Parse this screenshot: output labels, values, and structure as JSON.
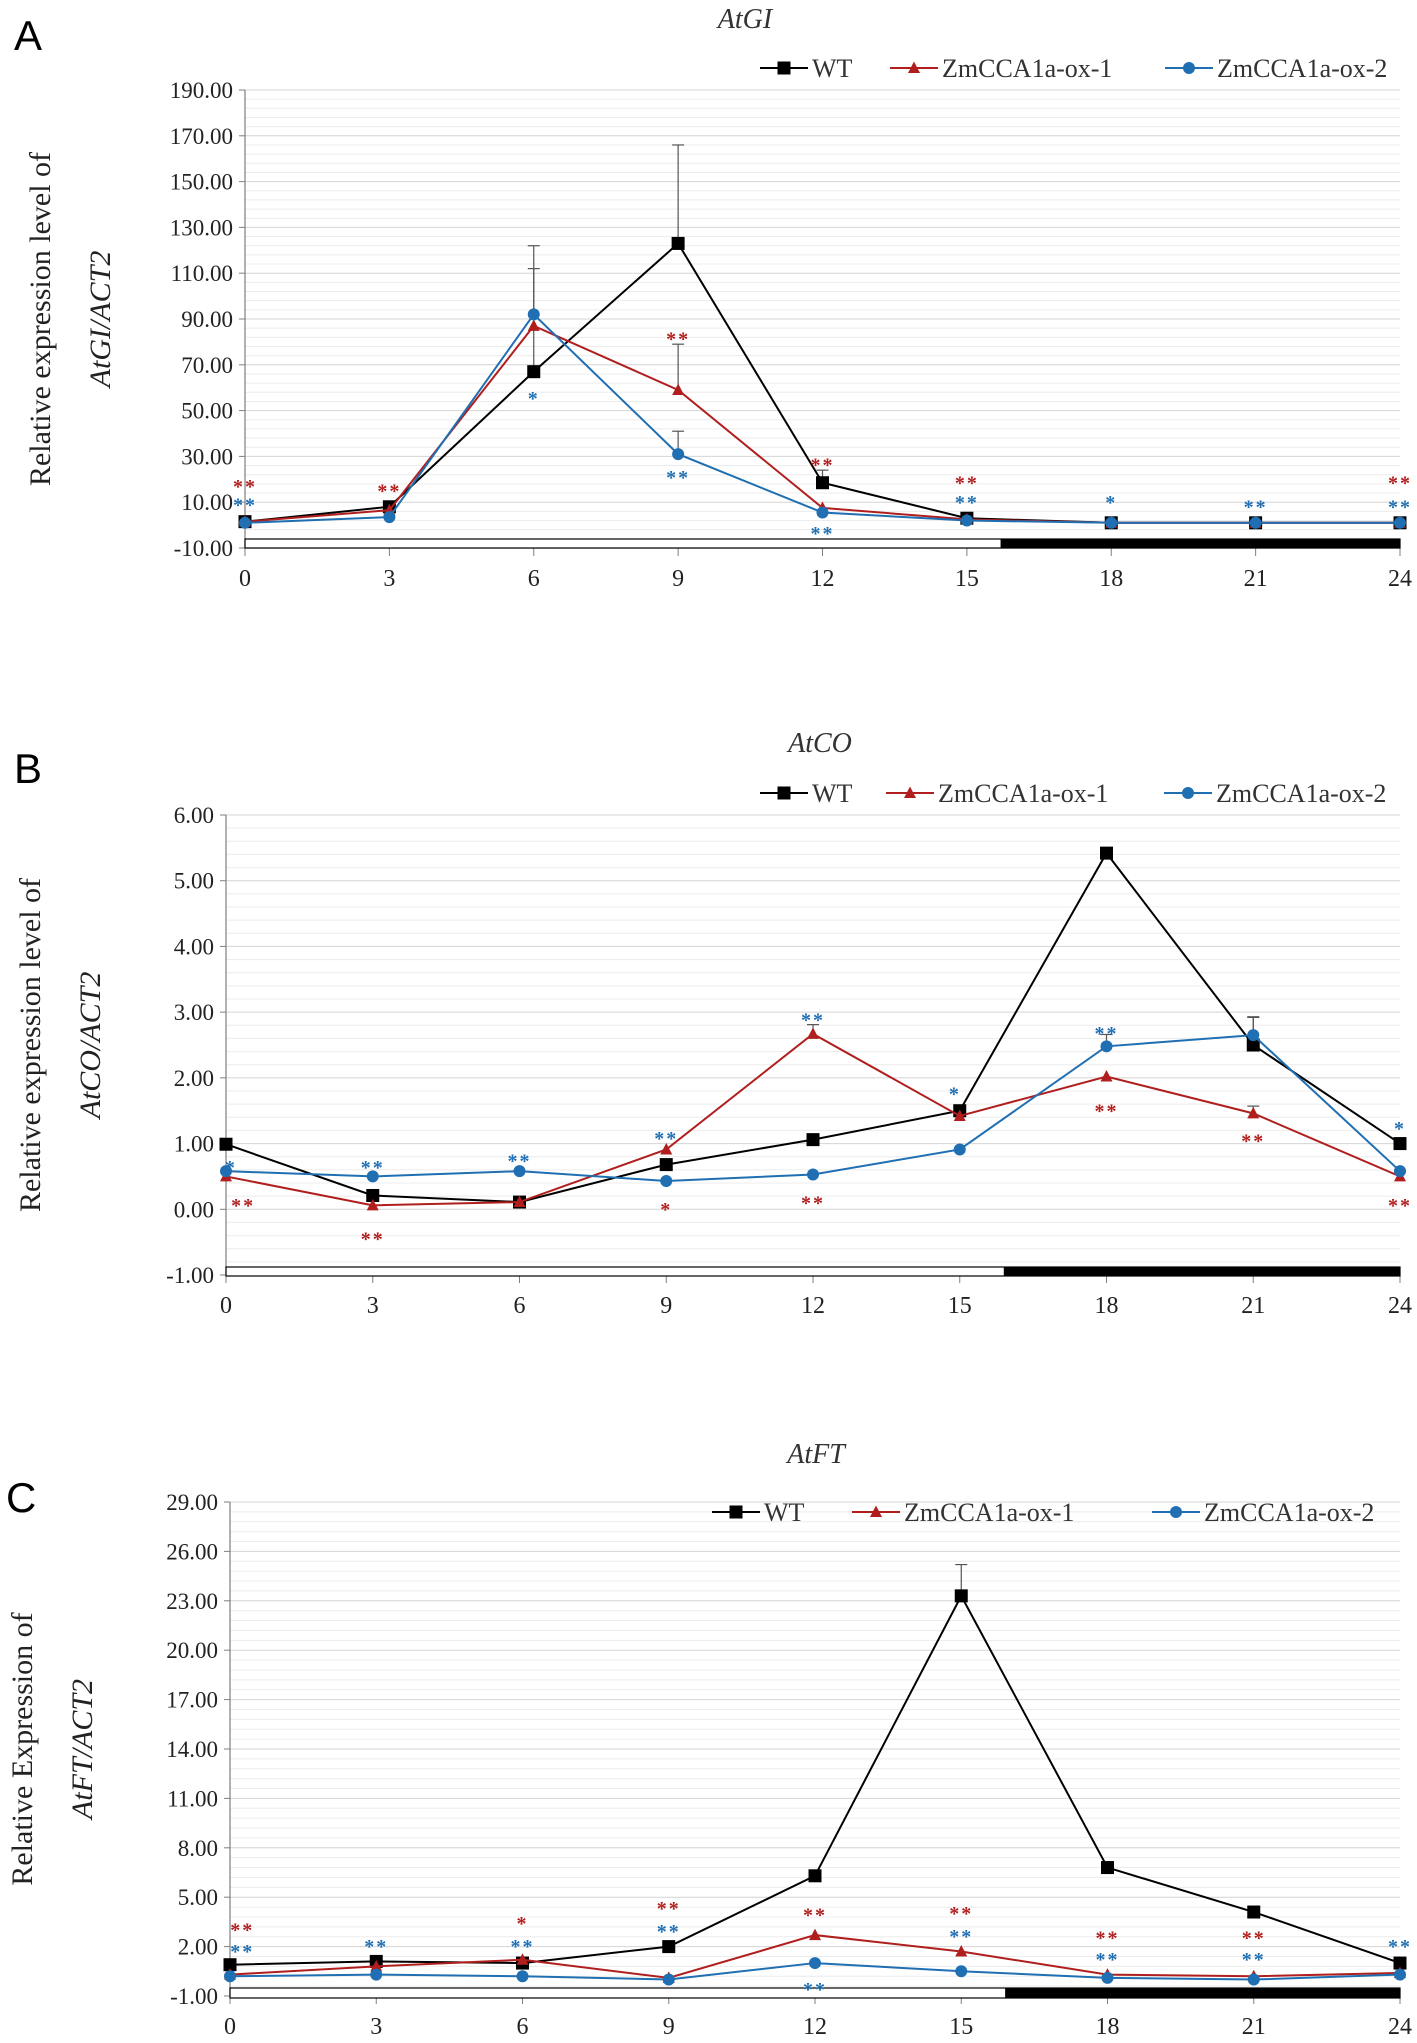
{
  "colors": {
    "WT": "#000000",
    "ZmCCA1a-ox-1": "#b01e1e",
    "ZmCCA1a-ox-2": "#1f6fb2",
    "grid": "#d4d4d4",
    "axis": "#7f7f7f"
  },
  "chart_data": [
    {
      "panel_label": "A",
      "type": "line",
      "title": "AtGI",
      "ylabel_line1": "Relative expression level of",
      "ylabel_line2": "AtGI/ACT2",
      "x": [
        0,
        3,
        6,
        9,
        12,
        15,
        18,
        21,
        24
      ],
      "ylim": [
        -10,
        190
      ],
      "yticks": [
        -10,
        10,
        30,
        50,
        70,
        90,
        110,
        130,
        150,
        170,
        190
      ],
      "ytick_labels": [
        "-10.00",
        "10.00",
        "30.00",
        "50.00",
        "70.00",
        "90.00",
        "110.00",
        "130.00",
        "150.00",
        "170.00",
        "190.00"
      ],
      "night_start": 15.7,
      "series": [
        {
          "name": "WT",
          "values": [
            1.5,
            8,
            67,
            123,
            18.5,
            3,
            1,
            1,
            1
          ],
          "errors": [
            0,
            0,
            45,
            43,
            5.5,
            0,
            0,
            0,
            0
          ]
        },
        {
          "name": "ZmCCA1a-ox-1",
          "values": [
            1.5,
            6.5,
            87,
            59,
            7.5,
            2.5,
            1,
            1,
            1
          ],
          "errors": [
            0,
            0,
            0,
            20,
            0,
            0,
            0,
            0,
            0
          ]
        },
        {
          "name": "ZmCCA1a-ox-2",
          "values": [
            1,
            3.5,
            92,
            31,
            5.5,
            2,
            1,
            1,
            1
          ],
          "errors": [
            0,
            0,
            30,
            10,
            0,
            0,
            0,
            0,
            0
          ]
        }
      ],
      "significance": [
        {
          "series": "ZmCCA1a-ox-1",
          "x": 0,
          "y": 17.5,
          "text": "**"
        },
        {
          "series": "ZmCCA1a-ox-2",
          "x": 0,
          "y": 9.5,
          "text": "**"
        },
        {
          "series": "ZmCCA1a-ox-1",
          "x": 3,
          "y": 15.5,
          "text": "**"
        },
        {
          "series": "ZmCCA1a-ox-2",
          "x": 6,
          "y": 56,
          "text": "*"
        },
        {
          "series": "ZmCCA1a-ox-1",
          "x": 9,
          "y": 82,
          "text": "**"
        },
        {
          "series": "ZmCCA1a-ox-2",
          "x": 9,
          "y": 21.5,
          "text": "**"
        },
        {
          "series": "ZmCCA1a-ox-1",
          "x": 12,
          "y": 27,
          "text": "**"
        },
        {
          "series": "ZmCCA1a-ox-2",
          "x": 12,
          "y": -3,
          "text": "**"
        },
        {
          "series": "ZmCCA1a-ox-1",
          "x": 15,
          "y": 19,
          "text": "**"
        },
        {
          "series": "ZmCCA1a-ox-2",
          "x": 15,
          "y": 10.5,
          "text": "**"
        },
        {
          "series": "ZmCCA1a-ox-2",
          "x": 18,
          "y": 10.5,
          "text": "*"
        },
        {
          "series": "ZmCCA1a-ox-2",
          "x": 21,
          "y": 8.5,
          "text": "**"
        },
        {
          "series": "ZmCCA1a-ox-1",
          "x": 24,
          "y": 19,
          "text": "**"
        },
        {
          "series": "ZmCCA1a-ox-2",
          "x": 24,
          "y": 8.5,
          "text": "**"
        }
      ],
      "legend": [
        "WT",
        "ZmCCA1a-ox-1",
        "ZmCCA1a-ox-2"
      ]
    },
    {
      "panel_label": "B",
      "type": "line",
      "title": "AtCO",
      "ylabel_line1": "Relative expression level of",
      "ylabel_line2": "AtCO/ACT2",
      "x": [
        0,
        3,
        6,
        9,
        12,
        15,
        18,
        21,
        24
      ],
      "ylim": [
        -1,
        6
      ],
      "yticks": [
        -1,
        0,
        1,
        2,
        3,
        4,
        5,
        6
      ],
      "ytick_labels": [
        "-1.00",
        "0.00",
        "1.00",
        "2.00",
        "3.00",
        "4.00",
        "5.00",
        "6.00"
      ],
      "night_start": 15.9,
      "series": [
        {
          "name": "WT",
          "values": [
            0.99,
            0.21,
            0.11,
            0.68,
            1.06,
            1.5,
            5.42,
            2.5,
            1.0
          ],
          "errors": [
            0,
            0,
            0,
            0,
            0,
            0,
            0,
            0.42,
            0
          ]
        },
        {
          "name": "ZmCCA1a-ox-1",
          "values": [
            0.5,
            0.06,
            0.11,
            0.91,
            2.67,
            1.42,
            2.02,
            1.46,
            0.5
          ],
          "errors": [
            0,
            0,
            0,
            0,
            0.14,
            0,
            0,
            0.11,
            0
          ]
        },
        {
          "name": "ZmCCA1a-ox-2",
          "values": [
            0.58,
            0.5,
            0.58,
            0.43,
            0.53,
            0.91,
            2.48,
            2.65,
            0.58
          ],
          "errors": [
            0,
            0,
            0,
            0,
            0,
            0,
            0.18,
            0.28,
            0
          ]
        }
      ],
      "significance": [
        {
          "series": "ZmCCA1a-ox-2",
          "x": 0.1,
          "y": 0.66,
          "text": "*"
        },
        {
          "series": "ZmCCA1a-ox-1",
          "x": 0.35,
          "y": 0.08,
          "text": "**"
        },
        {
          "series": "ZmCCA1a-ox-2",
          "x": 3,
          "y": 0.66,
          "text": "**"
        },
        {
          "series": "ZmCCA1a-ox-1",
          "x": 3,
          "y": -0.43,
          "text": "**"
        },
        {
          "series": "ZmCCA1a-ox-2",
          "x": 6,
          "y": 0.76,
          "text": "**"
        },
        {
          "series": "ZmCCA1a-ox-2",
          "x": 9,
          "y": 1.1,
          "text": "**"
        },
        {
          "series": "ZmCCA1a-ox-1",
          "x": 9,
          "y": 0.02,
          "text": "*"
        },
        {
          "series": "ZmCCA1a-ox-2",
          "x": 12,
          "y": 2.9,
          "text": "**"
        },
        {
          "series": "ZmCCA1a-ox-1",
          "x": 12,
          "y": 0.12,
          "text": "**"
        },
        {
          "series": "ZmCCA1a-ox-2",
          "x": 14.9,
          "y": 1.78,
          "text": "*"
        },
        {
          "series": "ZmCCA1a-ox-2",
          "x": 18,
          "y": 2.7,
          "text": "**"
        },
        {
          "series": "ZmCCA1a-ox-1",
          "x": 18,
          "y": 1.52,
          "text": "**"
        },
        {
          "series": "ZmCCA1a-ox-1",
          "x": 21,
          "y": 1.06,
          "text": "**"
        },
        {
          "series": "ZmCCA1a-ox-2",
          "x": 24,
          "y": 1.25,
          "text": "*"
        },
        {
          "series": "ZmCCA1a-ox-1",
          "x": 24,
          "y": 0.08,
          "text": "**"
        }
      ],
      "legend": [
        "WT",
        "ZmCCA1a-ox-1",
        "ZmCCA1a-ox-2"
      ]
    },
    {
      "panel_label": "C",
      "type": "line",
      "title": "AtFT",
      "ylabel_line1": "Relative Expression of",
      "ylabel_line2": "AtFT/ACT2",
      "x": [
        0,
        3,
        6,
        9,
        12,
        15,
        18,
        21,
        24
      ],
      "ylim": [
        -1,
        29
      ],
      "yticks": [
        -1,
        2,
        5,
        8,
        11,
        14,
        17,
        20,
        23,
        26,
        29
      ],
      "ytick_labels": [
        "-1.00",
        "2.00",
        "5.00",
        "8.00",
        "11.00",
        "14.00",
        "17.00",
        "20.00",
        "23.00",
        "26.00",
        "29.00"
      ],
      "night_start": 15.9,
      "series": [
        {
          "name": "WT",
          "values": [
            0.9,
            1.1,
            1.0,
            2.0,
            6.3,
            23.3,
            6.8,
            4.1,
            1.0
          ],
          "errors": [
            0,
            0,
            0,
            0,
            0,
            1.9,
            0,
            0,
            0
          ]
        },
        {
          "name": "ZmCCA1a-ox-1",
          "values": [
            0.3,
            0.8,
            1.2,
            0.1,
            2.7,
            1.7,
            0.3,
            0.2,
            0.4
          ],
          "errors": [
            0,
            0,
            0,
            0,
            0,
            0,
            0,
            0,
            0
          ]
        },
        {
          "name": "ZmCCA1a-ox-2",
          "values": [
            0.2,
            0.3,
            0.2,
            0.0,
            1.0,
            0.5,
            0.1,
            0.0,
            0.3
          ],
          "errors": [
            0,
            0,
            0,
            0,
            0,
            0,
            0,
            0,
            0
          ]
        }
      ],
      "significance": [
        {
          "series": "ZmCCA1a-ox-1",
          "x": 0.25,
          "y": 3.1,
          "text": "**"
        },
        {
          "series": "ZmCCA1a-ox-2",
          "x": 0.25,
          "y": 1.8,
          "text": "**"
        },
        {
          "series": "ZmCCA1a-ox-2",
          "x": 3,
          "y": 2.1,
          "text": "**"
        },
        {
          "series": "ZmCCA1a-ox-1",
          "x": 6,
          "y": 3.5,
          "text": "*"
        },
        {
          "series": "ZmCCA1a-ox-2",
          "x": 6,
          "y": 2.1,
          "text": "**"
        },
        {
          "series": "ZmCCA1a-ox-1",
          "x": 9,
          "y": 4.4,
          "text": "**"
        },
        {
          "series": "ZmCCA1a-ox-2",
          "x": 9,
          "y": 3.0,
          "text": "**"
        },
        {
          "series": "ZmCCA1a-ox-1",
          "x": 12,
          "y": 4.0,
          "text": "**"
        },
        {
          "series": "ZmCCA1a-ox-2",
          "x": 12,
          "y": -0.5,
          "text": "**"
        },
        {
          "series": "ZmCCA1a-ox-1",
          "x": 15,
          "y": 4.1,
          "text": "**"
        },
        {
          "series": "ZmCCA1a-ox-2",
          "x": 15,
          "y": 2.7,
          "text": "**"
        },
        {
          "series": "ZmCCA1a-ox-1",
          "x": 18,
          "y": 2.6,
          "text": "**"
        },
        {
          "series": "ZmCCA1a-ox-2",
          "x": 18,
          "y": 1.3,
          "text": "**"
        },
        {
          "series": "ZmCCA1a-ox-1",
          "x": 21,
          "y": 2.6,
          "text": "**"
        },
        {
          "series": "ZmCCA1a-ox-2",
          "x": 21,
          "y": 1.3,
          "text": "**"
        },
        {
          "series": "ZmCCA1a-ox-2",
          "x": 24,
          "y": 2.1,
          "text": "**"
        }
      ],
      "legend": [
        "WT",
        "ZmCCA1a-ox-1",
        "ZmCCA1a-ox-2"
      ]
    }
  ]
}
